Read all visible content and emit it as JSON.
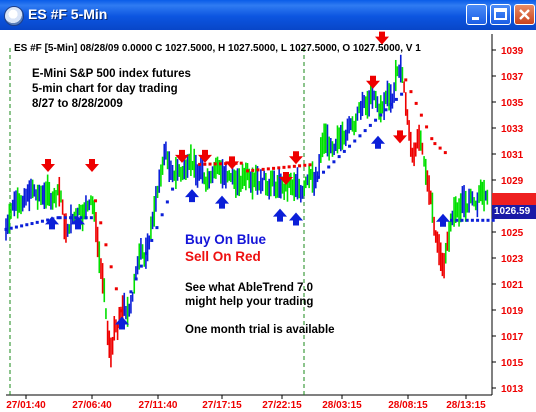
{
  "window": {
    "title": "ES #F  5-Min",
    "controls": [
      "minimize",
      "maximize",
      "close"
    ]
  },
  "chart_header": "ES #F [5-Min] 08/28/09  0.0000  C 1027.5000,  H 1027.5000,  L 1027.5000,  O 1027.5000,  V 1",
  "description": [
    "E-Mini S&P 500 index futures",
    "5-min chart for day trading",
    "8/27 to 8/28/2009"
  ],
  "buy_label": "Buy On Blue",
  "sell_label": "Sell On Red",
  "promo_lines": [
    "See what AbleTrend 7.0",
    "might help your trading"
  ],
  "trial_text": "One month trial is available",
  "current_price": "1026.59",
  "colors": {
    "up": "#00e000",
    "down": "#ee0000",
    "trend": "#0b1fd8",
    "axis_text": "#ee0000",
    "badge": "#1a1aa6"
  },
  "chart_data": {
    "type": "bar",
    "y_ticks": [
      "1039",
      "1037",
      "1035",
      "1033",
      "1031",
      "1029",
      "1027",
      "1025",
      "1023",
      "1021",
      "1019",
      "1017",
      "1015",
      "1013"
    ],
    "x_ticks": [
      "27/01:40",
      "27/06:40",
      "27/11:40",
      "27/17:15",
      "27/22:15",
      "28/03:15",
      "28/08:15",
      "28/13:15"
    ],
    "ylim": [
      1013,
      1040
    ],
    "sell_arrows_at": [
      1030.0,
      1030.0,
      1030.7,
      1030.7,
      1030.2,
      1029.0,
      1030.6,
      1039.8,
      1036.4,
      1032.2
    ],
    "buy_arrows_at": [
      1026.2,
      1026.2,
      1018.5,
      1028.3,
      1027.8,
      1026.8,
      1026.5,
      1032.4,
      1026.4
    ],
    "price_path": [
      [
        0,
        1025.2
      ],
      [
        4,
        1026.5
      ],
      [
        8,
        1027.3
      ],
      [
        12,
        1027.5
      ],
      [
        16,
        1027.1
      ],
      [
        20,
        1027.8
      ],
      [
        26,
        1028.3
      ],
      [
        30,
        1027.7
      ],
      [
        36,
        1027.9
      ],
      [
        40,
        1028.0
      ],
      [
        44,
        1027.5
      ],
      [
        48,
        1027.8
      ],
      [
        50,
        1028.4
      ],
      [
        53,
        1027.7
      ],
      [
        56,
        1025.6
      ],
      [
        59,
        1024.9
      ],
      [
        62,
        1025.8
      ],
      [
        66,
        1026.2
      ],
      [
        70,
        1026.7
      ],
      [
        74,
        1026.3
      ],
      [
        78,
        1027.0
      ],
      [
        82,
        1027.6
      ],
      [
        86,
        1025.9
      ],
      [
        89,
        1023.4
      ],
      [
        92,
        1021.8
      ],
      [
        95,
        1019.9
      ],
      [
        97,
        1017.6
      ],
      [
        99,
        1016.3
      ],
      [
        101,
        1015.7
      ],
      [
        103,
        1016.8
      ],
      [
        105,
        1017.9
      ],
      [
        107,
        1017.2
      ],
      [
        109,
        1018.3
      ],
      [
        111,
        1019.0
      ],
      [
        113,
        1019.5
      ],
      [
        115,
        1018.6
      ],
      [
        118,
        1019.1
      ],
      [
        121,
        1019.8
      ],
      [
        124,
        1021.3
      ],
      [
        127,
        1022.9
      ],
      [
        130,
        1024.1
      ],
      [
        133,
        1022.8
      ],
      [
        136,
        1023.6
      ],
      [
        139,
        1025.1
      ],
      [
        142,
        1026.6
      ],
      [
        145,
        1027.8
      ],
      [
        148,
        1029.0
      ],
      [
        151,
        1030.6
      ],
      [
        154,
        1031.3
      ],
      [
        157,
        1029.8
      ],
      [
        160,
        1029.3
      ],
      [
        163,
        1029.6
      ],
      [
        166,
        1029.8
      ],
      [
        169,
        1029.4
      ],
      [
        172,
        1029.9
      ],
      [
        176,
        1030.6
      ],
      [
        180,
        1030.2
      ],
      [
        184,
        1029.4
      ],
      [
        188,
        1029.8
      ],
      [
        192,
        1028.9
      ],
      [
        196,
        1029.3
      ],
      [
        200,
        1029.8
      ],
      [
        204,
        1030.1
      ],
      [
        208,
        1029.5
      ],
      [
        212,
        1029.1
      ],
      [
        216,
        1029.3
      ],
      [
        220,
        1029.0
      ],
      [
        224,
        1028.6
      ],
      [
        228,
        1029.2
      ],
      [
        232,
        1029.6
      ],
      [
        236,
        1028.9
      ],
      [
        240,
        1029.3
      ],
      [
        244,
        1028.6
      ],
      [
        248,
        1029.1
      ],
      [
        252,
        1028.4
      ],
      [
        256,
        1028.9
      ],
      [
        260,
        1028.3
      ],
      [
        264,
        1028.7
      ],
      [
        268,
        1028.1
      ],
      [
        272,
        1028.8
      ],
      [
        276,
        1028.3
      ],
      [
        280,
        1028.6
      ],
      [
        284,
        1028.0
      ],
      [
        288,
        1028.9
      ],
      [
        292,
        1029.6
      ],
      [
        296,
        1028.7
      ],
      [
        300,
        1029.4
      ],
      [
        303,
        1031.6
      ],
      [
        307,
        1032.3
      ],
      [
        311,
        1031.5
      ],
      [
        315,
        1031.1
      ],
      [
        319,
        1032.1
      ],
      [
        323,
        1032.6
      ],
      [
        327,
        1032.4
      ],
      [
        331,
        1033.5
      ],
      [
        335,
        1033.2
      ],
      [
        339,
        1034.3
      ],
      [
        343,
        1034.9
      ],
      [
        347,
        1034.6
      ],
      [
        351,
        1035.7
      ],
      [
        355,
        1035.2
      ],
      [
        359,
        1034.3
      ],
      [
        363,
        1034.6
      ],
      [
        366,
        1035.8
      ],
      [
        369,
        1035.5
      ],
      [
        371,
        1034.9
      ],
      [
        373,
        1036.0
      ],
      [
        375,
        1037.5
      ],
      [
        377,
        1036.8
      ],
      [
        379,
        1037.9
      ],
      [
        381,
        1037.0
      ],
      [
        383,
        1035.6
      ],
      [
        385,
        1034.3
      ],
      [
        387,
        1032.8
      ],
      [
        389,
        1031.6
      ],
      [
        391,
        1030.8
      ],
      [
        394,
        1031.7
      ],
      [
        397,
        1032.3
      ],
      [
        400,
        1031.2
      ],
      [
        403,
        1029.6
      ],
      [
        406,
        1028.6
      ],
      [
        409,
        1027.3
      ],
      [
        412,
        1025.1
      ],
      [
        415,
        1023.9
      ],
      [
        418,
        1022.9
      ],
      [
        421,
        1022.5
      ],
      [
        424,
        1024.1
      ],
      [
        427,
        1025.5
      ],
      [
        430,
        1026.5
      ],
      [
        433,
        1027.1
      ],
      [
        436,
        1026.3
      ],
      [
        439,
        1027.6
      ],
      [
        442,
        1026.9
      ],
      [
        445,
        1027.3
      ],
      [
        448,
        1027.8
      ],
      [
        451,
        1026.9
      ],
      [
        454,
        1027.6
      ],
      [
        457,
        1028.2
      ],
      [
        460,
        1027.7
      ],
      [
        463,
        1027.4
      ]
    ]
  }
}
